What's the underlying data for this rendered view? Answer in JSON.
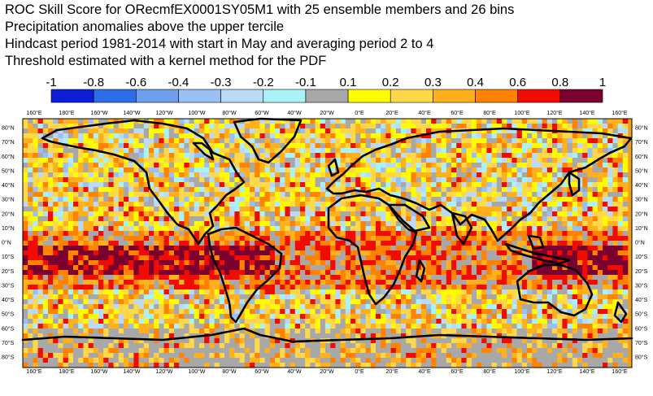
{
  "title_lines": [
    "ROC Skill Score for ORecmfEX0001SY05M1 with 25 ensemble members and 26 bins",
    "Precipitation anomalies above the upper tercile",
    "Hindcast period 1981-2014 with start in May and averaging period  2 to  4",
    "Threshold estimated with a kernel method for the PDF"
  ],
  "colorbar": {
    "labels": [
      "-1",
      "-0.8",
      "-0.6",
      "-0.4",
      "-0.3",
      "-0.2",
      "-0.1",
      "0.1",
      "0.2",
      "0.3",
      "0.4",
      "0.6",
      "0.8",
      "1"
    ],
    "colors": [
      "#0d1cd6",
      "#2b6fe8",
      "#6f9ef0",
      "#98c0f4",
      "#b9dbf8",
      "#a9f2f8",
      "#a8a8a8",
      "#fffc00",
      "#ffd84a",
      "#ffb01c",
      "#ff8200",
      "#f00c00",
      "#7a0030"
    ]
  },
  "map": {
    "lon_labels": [
      "160°E",
      "180°E",
      "160°W",
      "140°W",
      "120°W",
      "100°W",
      "80°W",
      "60°W",
      "40°W",
      "20°W",
      "0°E",
      "20°E",
      "40°E",
      "60°E",
      "80°E",
      "100°E",
      "120°E",
      "140°E",
      "160°E"
    ],
    "lat_labels": [
      "80°N",
      "70°N",
      "60°N",
      "50°N",
      "40°N",
      "30°N",
      "20°N",
      "10°N",
      "0°N",
      "10°S",
      "20°S",
      "30°S",
      "40°S",
      "50°S",
      "60°S",
      "70°S",
      "80°S"
    ]
  }
}
